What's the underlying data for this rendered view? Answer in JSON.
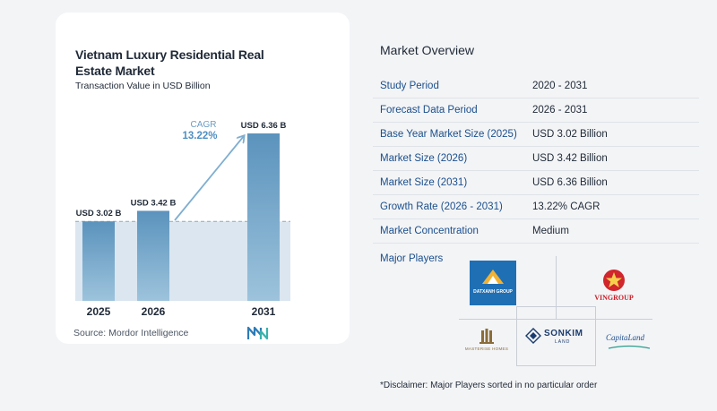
{
  "chart_data": {
    "type": "bar",
    "title": "Vietnam Luxury Residential Real Estate Market",
    "subtitle": "Transaction Value in USD Billion",
    "categories": [
      "2025",
      "2026",
      "2031"
    ],
    "values": [
      3.02,
      3.42,
      6.36
    ],
    "data_labels": [
      "USD 3.02 B",
      "USD 3.42 B",
      "USD 6.36 B"
    ],
    "unit": "USD Billion",
    "annotation": {
      "label": "CAGR",
      "value": "13.22%"
    },
    "ylim": [
      0,
      7
    ],
    "grid": false,
    "legend": "none",
    "colors": {
      "bar_top": "#5b93bd",
      "bar_bottom": "#9dc3dc",
      "band": "#dbe6f0",
      "arrow": "#7faed0",
      "cagr_value": "#4f8fc2",
      "cagr_label": "#6b9cc4"
    }
  },
  "source": "Source:  Mordor Intelligence",
  "overview": {
    "title": "Market Overview",
    "rows": [
      {
        "key": "Study Period",
        "value": "2020 - 2031"
      },
      {
        "key": "Forecast Data Period",
        "value": "2026 - 2031"
      },
      {
        "key": "Base Year Market Size (2025)",
        "value": "USD 3.02 Billion"
      },
      {
        "key": "Market Size (2026)",
        "value": "USD 3.42 Billion"
      },
      {
        "key": "Market Size (2031)",
        "value": "USD 6.36 Billion"
      },
      {
        "key": "Growth Rate (2026 - 2031)",
        "value": "13.22% CAGR"
      },
      {
        "key": "Market Concentration",
        "value": "Medium"
      }
    ]
  },
  "players": {
    "title": "Major Players",
    "logos": [
      {
        "name": "dat-xanh-group-logo",
        "text": "DATXANH GROUP"
      },
      {
        "name": "vingroup-logo",
        "text": "VINGROUP"
      },
      {
        "name": "masterise-homes-logo",
        "text": "MASTERISE HOMES"
      },
      {
        "name": "sonkim-land-logo",
        "text": "SONKIM",
        "sub": "LAND"
      },
      {
        "name": "capitaland-logo",
        "text": "CapitaLand"
      }
    ]
  },
  "disclaimer": "*Disclaimer: Major Players sorted in no particular order"
}
